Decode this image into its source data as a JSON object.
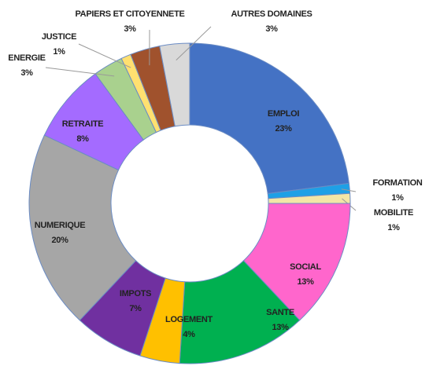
{
  "chart_data": {
    "type": "donut",
    "categories": [
      "EMPLOI",
      "FORMATION",
      "MOBILITE",
      "SOCIAL",
      "SANTE",
      "LOGEMENT",
      "IMPOTS",
      "NUMERIQUE",
      "RETRAITE",
      "ENERGIE",
      "JUSTICE",
      "PAPIERS ET CITOYENNETE",
      "AUTRES DOMAINES"
    ],
    "values": [
      23,
      1,
      1,
      13,
      13,
      4,
      7,
      20,
      8,
      3,
      1,
      3,
      3
    ],
    "value_labels": [
      "23%",
      "1%",
      "1%",
      "13%",
      "13%",
      "4%",
      "7%",
      "20%",
      "8%",
      "3%",
      "1%",
      "3%",
      "3%"
    ],
    "colors": [
      "#4472c4",
      "#1ea0e6",
      "#f3e6a6",
      "#ff66cc",
      "#00b050",
      "#ffc000",
      "#7030a0",
      "#a6a6a6",
      "#a46bff",
      "#a9d18e",
      "#ffe070",
      "#a0522d",
      "#d9d9d9"
    ]
  }
}
